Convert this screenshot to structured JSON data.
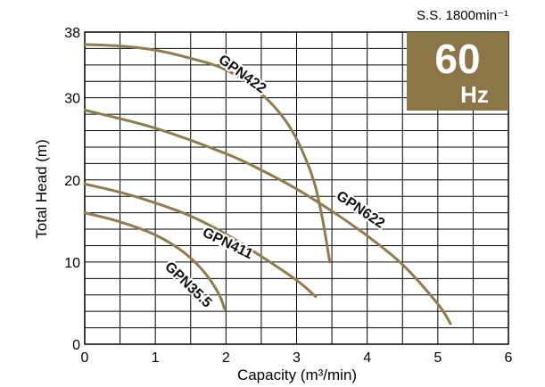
{
  "chart_data": {
    "type": "line",
    "xlabel": "Capacity (m³/min)",
    "ylabel": "Total Head (m)",
    "speed_note": "S.S. 1800min⁻¹",
    "badge": {
      "value": "60",
      "unit": "Hz",
      "color": "#8a7646"
    },
    "line_color": "#8f7c4f",
    "grid": true,
    "xlim": [
      0,
      6
    ],
    "ylim": [
      0,
      38
    ],
    "x_ticks": [
      0,
      1,
      2,
      3,
      4,
      5,
      6
    ],
    "y_ticks": [
      0,
      10,
      20,
      30,
      38
    ],
    "series": [
      {
        "name": "GPN422",
        "points": [
          [
            0,
            36.5
          ],
          [
            0.5,
            36.3
          ],
          [
            1.0,
            35.8
          ],
          [
            1.5,
            34.8
          ],
          [
            2.0,
            33.4
          ],
          [
            2.5,
            30.5
          ],
          [
            2.9,
            26.5
          ],
          [
            3.2,
            21.0
          ],
          [
            3.35,
            16.0
          ],
          [
            3.47,
            10.0
          ]
        ]
      },
      {
        "name": "GPN622",
        "points": [
          [
            0,
            28.5
          ],
          [
            1.0,
            26.3
          ],
          [
            2.0,
            23.2
          ],
          [
            2.5,
            21.2
          ],
          [
            3.0,
            18.9
          ],
          [
            3.5,
            16.2
          ],
          [
            4.0,
            13.2
          ],
          [
            4.5,
            9.7
          ],
          [
            5.0,
            4.9
          ],
          [
            5.18,
            2.5
          ]
        ]
      },
      {
        "name": "GPN411",
        "points": [
          [
            0,
            19.5
          ],
          [
            0.5,
            18.5
          ],
          [
            1.0,
            17.2
          ],
          [
            1.5,
            15.6
          ],
          [
            2.0,
            13.4
          ],
          [
            2.5,
            10.7
          ],
          [
            3.0,
            7.8
          ],
          [
            3.27,
            5.8
          ]
        ]
      },
      {
        "name": "GPN35.5",
        "points": [
          [
            0,
            16.0
          ],
          [
            0.5,
            14.9
          ],
          [
            1.0,
            13.3
          ],
          [
            1.4,
            11.2
          ],
          [
            1.7,
            8.7
          ],
          [
            1.9,
            6.1
          ],
          [
            1.98,
            4.3
          ]
        ]
      }
    ]
  }
}
